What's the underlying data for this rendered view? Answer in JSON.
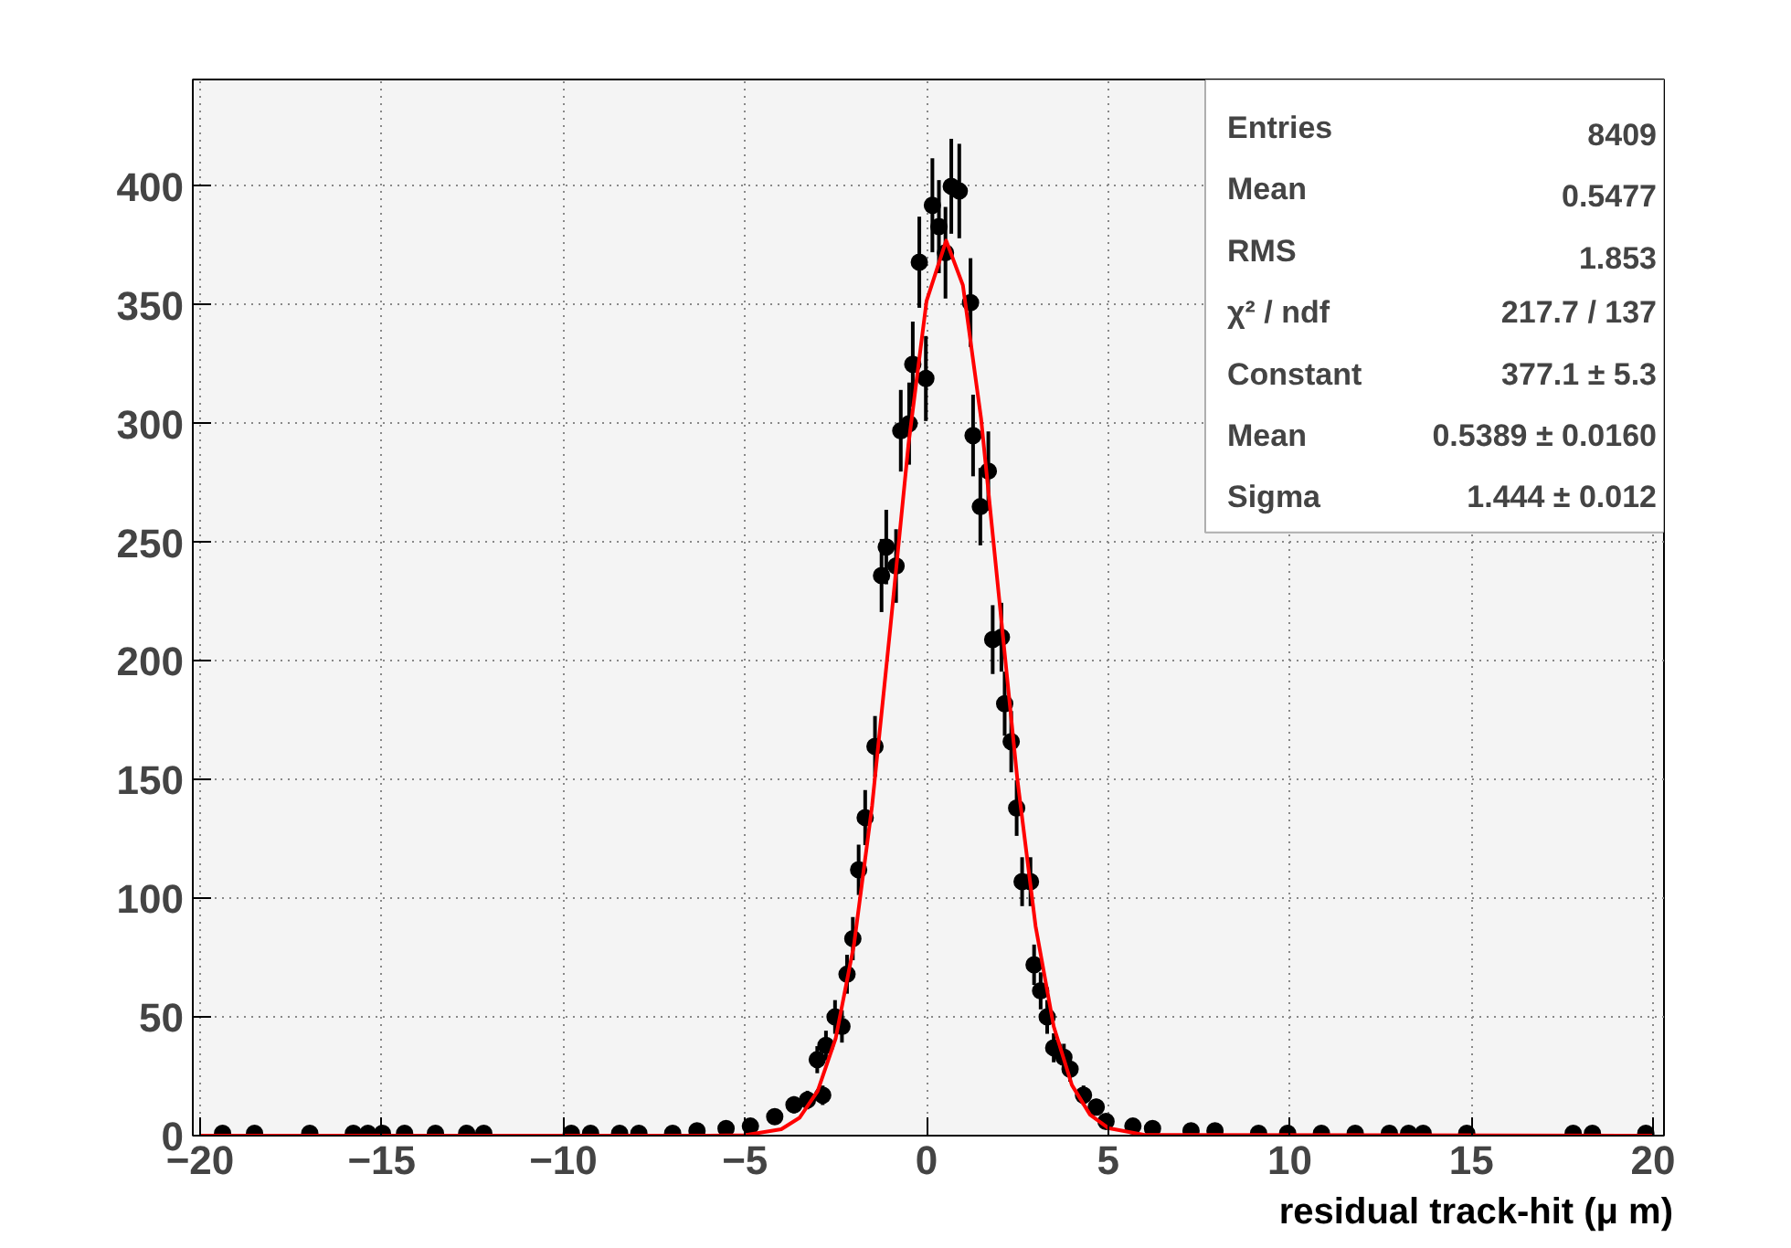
{
  "chart_data": {
    "type": "scatter",
    "xlabel": "residual track-hit (μ m)",
    "xlim": [
      -20.2,
      20.3
    ],
    "ylim": [
      0,
      445
    ],
    "xticks": [
      -20,
      -15,
      -10,
      -5,
      0,
      5,
      10,
      15,
      20
    ],
    "yticks": [
      0,
      50,
      100,
      150,
      200,
      250,
      300,
      350,
      400
    ],
    "grid": true,
    "series": [
      {
        "color": "#000000",
        "marker": "circle",
        "x": [
          -19.38,
          -18.5,
          -16.98,
          -15.78,
          -15.38,
          -14.98,
          -14.37,
          -13.52,
          -12.66,
          -12.19,
          -9.78,
          -9.25,
          -8.45,
          -7.92,
          -6.99,
          -6.32,
          -5.52,
          -4.85,
          -4.18,
          -3.65,
          -3.28,
          -3.01,
          -2.86,
          -2.77,
          -2.52,
          -2.33,
          -2.19,
          -2.03,
          -1.87,
          -1.69,
          -1.42,
          -1.24,
          -1.11,
          -0.84,
          -0.71,
          -0.48,
          -0.38,
          -0.2,
          -0.02,
          0.16,
          0.34,
          0.52,
          0.68,
          0.9,
          1.21,
          1.28,
          1.48,
          1.7,
          1.82,
          2.06,
          2.15,
          2.33,
          2.48,
          2.63,
          2.86,
          2.96,
          3.14,
          3.32,
          3.5,
          3.78,
          3.95,
          4.32,
          4.67,
          4.94,
          5.68,
          6.22,
          7.28,
          7.94,
          9.14,
          9.94,
          10.87,
          11.8,
          12.74,
          13.27,
          13.67,
          14.87,
          17.8,
          18.33,
          19.8
        ],
        "values": [
          1,
          1,
          1,
          1,
          1,
          1,
          1,
          1,
          1,
          1,
          1,
          1,
          1,
          1,
          1,
          2,
          3,
          4,
          8,
          13,
          15,
          32,
          17,
          38,
          50,
          46,
          68,
          83,
          112,
          134,
          164,
          236,
          248,
          240,
          297,
          300,
          325,
          368,
          319,
          392,
          383,
          372,
          400,
          398,
          351,
          295,
          265,
          280,
          209,
          210,
          182,
          166,
          138,
          107,
          107,
          72,
          61,
          50,
          37,
          33,
          28,
          17,
          12,
          6,
          4,
          3,
          2,
          2,
          1,
          1,
          1,
          1,
          1,
          1,
          1,
          1,
          1,
          1,
          1
        ],
        "errors": [
          1,
          1,
          1,
          1,
          1,
          1,
          1,
          1,
          1,
          1,
          1,
          1,
          1,
          1,
          1,
          1.4,
          1.7,
          2,
          2.8,
          3.6,
          3.9,
          5.7,
          4.1,
          6.2,
          7.1,
          6.8,
          8.2,
          9.1,
          10.6,
          11.6,
          12.8,
          15.4,
          15.7,
          15.5,
          17.2,
          17.3,
          18,
          19.2,
          17.9,
          19.8,
          19.6,
          19.3,
          20,
          19.9,
          18.7,
          17.2,
          16.3,
          16.7,
          14.5,
          14.5,
          13.5,
          12.9,
          11.7,
          10.3,
          10.3,
          8.5,
          7.8,
          7.1,
          6.1,
          5.7,
          5.3,
          4.1,
          3.5,
          2.4,
          2,
          1.7,
          1.4,
          1.4,
          1,
          1,
          1,
          1,
          1,
          1,
          1,
          1,
          1,
          1,
          1
        ]
      },
      {
        "type": "line",
        "color": "#ff0000",
        "x": [
          -20,
          -6,
          -5,
          -4,
          -3.5,
          -3,
          -2.5,
          -2,
          -1.5,
          -1,
          -0.5,
          0,
          0.539,
          1,
          1.5,
          2,
          2.5,
          3,
          3.5,
          4,
          4.5,
          5,
          6,
          20
        ],
        "values": [
          0,
          0,
          0.2,
          2.7,
          7.5,
          18.7,
          41.1,
          80.3,
          139,
          213.7,
          291,
          351.7,
          377.1,
          358.3,
          302.2,
          226,
          150,
          88.3,
          46,
          21.3,
          8.8,
          3.2,
          0.3,
          0
        ]
      }
    ],
    "annotations": [
      "Entries",
      "8409",
      "Mean",
      "0.5477",
      "RMS",
      "1.853",
      "χ² / ndf",
      "217.7 / 137",
      "Constant",
      "377.1 ± 5.3",
      "Mean",
      "0.5389 ± 0.0160",
      "Sigma",
      "1.444 ± 0.012"
    ]
  }
}
